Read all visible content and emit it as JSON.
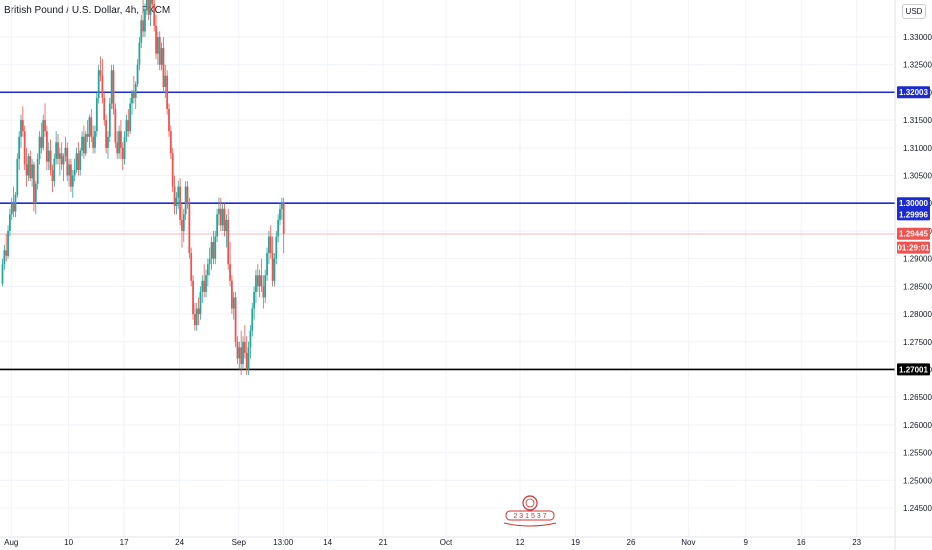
{
  "header": {
    "title": "British Pound / U.S. Dollar, 4h, FXCM",
    "currency_badge": "USD"
  },
  "colors": {
    "up": "#26a69a",
    "down": "#ef5350",
    "blue_line": "#1c2bd1",
    "black_line": "#000000",
    "grid": "#f0f3fa",
    "axis_text": "#131722",
    "current_price": "#ef5350",
    "current_line": "#f7b8b8"
  },
  "chart_data": {
    "type": "candlestick",
    "title": "British Pound / U.S. Dollar, 4h, FXCM",
    "ylim": [
      1.24,
      1.34
    ],
    "y_ticks": [
      1.33,
      1.325,
      1.32,
      1.315,
      1.31,
      1.305,
      1.3,
      1.295,
      1.29,
      1.285,
      1.28,
      1.275,
      1.27,
      1.265,
      1.26,
      1.255,
      1.25,
      1.245
    ],
    "y_tick_labels": [
      "1.33000",
      "1.32500",
      "1.32000",
      "1.31500",
      "1.31000",
      "1.30500",
      "1.30000",
      "1.29500",
      "1.29000",
      "1.28500",
      "1.28000",
      "1.27500",
      "1.27000",
      "1.26500",
      "1.26000",
      "1.25500",
      "1.25000",
      "1.24500"
    ],
    "x_tick_labels": [
      {
        "label": "Aug",
        "bar": 5
      },
      {
        "label": "10",
        "bar": 36
      },
      {
        "label": "17",
        "bar": 66
      },
      {
        "label": "24",
        "bar": 96
      },
      {
        "label": "Sep",
        "bar": 128
      },
      {
        "label": "13:00",
        "bar": 152
      },
      {
        "label": "14",
        "bar": 176
      },
      {
        "label": "21",
        "bar": 206
      },
      {
        "label": "Oct",
        "bar": 240
      },
      {
        "label": "12",
        "bar": 280
      },
      {
        "label": "19",
        "bar": 310
      },
      {
        "label": "26",
        "bar": 340
      },
      {
        "label": "Nov",
        "bar": 371
      },
      {
        "label": "9",
        "bar": 402
      },
      {
        "label": "16",
        "bar": 432
      },
      {
        "label": "23",
        "bar": 462
      }
    ],
    "horizontal_lines": [
      {
        "price": 1.32003,
        "label": "1.32003",
        "color": "#1c2bd1"
      },
      {
        "price": 1.3,
        "label": "1.30000",
        "color": "#1c2bd1"
      },
      {
        "price": 1.27001,
        "label": "1.27001",
        "color": "#000000"
      }
    ],
    "price_tags": [
      {
        "label": "1.29996",
        "color": "#1c2bd1",
        "slot": 1.298
      },
      {
        "label": "1.29445",
        "color": "#ef5350",
        "slot": 1.2945
      },
      {
        "label": "01:29:01",
        "color": "#ef5350",
        "slot": 1.292
      }
    ],
    "current_price": 1.29445,
    "watermark_text": "2 3 1 5 3 7",
    "ohlc": [
      [
        1.2855,
        1.29,
        1.285,
        1.289
      ],
      [
        1.289,
        1.2925,
        1.288,
        1.2915
      ],
      [
        1.2915,
        1.2945,
        1.2895,
        1.2905
      ],
      [
        1.2905,
        1.296,
        1.29,
        1.295
      ],
      [
        1.295,
        1.299,
        1.294,
        1.298
      ],
      [
        1.298,
        1.301,
        1.297,
        1.3
      ],
      [
        1.3,
        1.303,
        1.2975,
        1.2985
      ],
      [
        1.2985,
        1.302,
        1.2975,
        1.3015
      ],
      [
        1.3015,
        1.309,
        1.301,
        1.308
      ],
      [
        1.308,
        1.313,
        1.306,
        1.312
      ],
      [
        1.312,
        1.316,
        1.31,
        1.315
      ],
      [
        1.315,
        1.3175,
        1.312,
        1.313
      ],
      [
        1.313,
        1.314,
        1.306,
        1.307
      ],
      [
        1.307,
        1.31,
        1.303,
        1.305
      ],
      [
        1.305,
        1.309,
        1.304,
        1.3085
      ],
      [
        1.3085,
        1.3095,
        1.304,
        1.3045
      ],
      [
        1.3045,
        1.308,
        1.303,
        1.307
      ],
      [
        1.307,
        1.3075,
        1.2985,
        1.3
      ],
      [
        1.3,
        1.304,
        1.298,
        1.3035
      ],
      [
        1.3035,
        1.309,
        1.3025,
        1.308
      ],
      [
        1.308,
        1.313,
        1.307,
        1.312
      ],
      [
        1.312,
        1.3145,
        1.309,
        1.31
      ],
      [
        1.31,
        1.316,
        1.3095,
        1.315
      ],
      [
        1.315,
        1.318,
        1.312,
        1.313
      ],
      [
        1.313,
        1.314,
        1.306,
        1.3075
      ],
      [
        1.3075,
        1.311,
        1.306,
        1.3095
      ],
      [
        1.3095,
        1.3115,
        1.305,
        1.306
      ],
      [
        1.306,
        1.307,
        1.302,
        1.304
      ],
      [
        1.304,
        1.309,
        1.303,
        1.308
      ],
      [
        1.308,
        1.313,
        1.307,
        1.311
      ],
      [
        1.311,
        1.3125,
        1.307,
        1.308
      ],
      [
        1.308,
        1.31,
        1.305,
        1.309
      ],
      [
        1.309,
        1.311,
        1.306,
        1.307
      ],
      [
        1.307,
        1.309,
        1.304,
        1.3085
      ],
      [
        1.3085,
        1.312,
        1.3075,
        1.31
      ],
      [
        1.31,
        1.311,
        1.304,
        1.305
      ],
      [
        1.305,
        1.308,
        1.303,
        1.307
      ],
      [
        1.307,
        1.308,
        1.302,
        1.303
      ],
      [
        1.303,
        1.306,
        1.301,
        1.305
      ],
      [
        1.305,
        1.308,
        1.304,
        1.306
      ],
      [
        1.306,
        1.31,
        1.3055,
        1.309
      ],
      [
        1.309,
        1.311,
        1.305,
        1.306
      ],
      [
        1.306,
        1.31,
        1.305,
        1.3095
      ],
      [
        1.3095,
        1.313,
        1.3085,
        1.312
      ],
      [
        1.312,
        1.314,
        1.308,
        1.309
      ],
      [
        1.309,
        1.313,
        1.3085,
        1.3125
      ],
      [
        1.3125,
        1.315,
        1.311,
        1.312
      ],
      [
        1.312,
        1.316,
        1.31,
        1.3155
      ],
      [
        1.3155,
        1.317,
        1.311,
        1.312
      ],
      [
        1.312,
        1.314,
        1.309,
        1.31
      ],
      [
        1.31,
        1.314,
        1.309,
        1.313
      ],
      [
        1.313,
        1.32,
        1.312,
        1.319
      ],
      [
        1.319,
        1.325,
        1.318,
        1.324
      ],
      [
        1.324,
        1.3265,
        1.322,
        1.323
      ],
      [
        1.323,
        1.326,
        1.318,
        1.319
      ],
      [
        1.319,
        1.32,
        1.314,
        1.315
      ],
      [
        1.315,
        1.316,
        1.309,
        1.31
      ],
      [
        1.31,
        1.313,
        1.308,
        1.312
      ],
      [
        1.312,
        1.319,
        1.311,
        1.318
      ],
      [
        1.318,
        1.325,
        1.317,
        1.324
      ],
      [
        1.324,
        1.325,
        1.316,
        1.317
      ],
      [
        1.317,
        1.318,
        1.31,
        1.311
      ],
      [
        1.311,
        1.313,
        1.308,
        1.309
      ],
      [
        1.309,
        1.314,
        1.308,
        1.313
      ],
      [
        1.313,
        1.315,
        1.308,
        1.31
      ],
      [
        1.31,
        1.311,
        1.306,
        1.308
      ],
      [
        1.308,
        1.313,
        1.307,
        1.312
      ],
      [
        1.312,
        1.316,
        1.311,
        1.315
      ],
      [
        1.315,
        1.317,
        1.312,
        1.313
      ],
      [
        1.313,
        1.319,
        1.3125,
        1.318
      ],
      [
        1.318,
        1.3205,
        1.316,
        1.32
      ],
      [
        1.32,
        1.323,
        1.318,
        1.319
      ],
      [
        1.319,
        1.322,
        1.317,
        1.3215
      ],
      [
        1.3215,
        1.326,
        1.321,
        1.325
      ],
      [
        1.325,
        1.33,
        1.324,
        1.329
      ],
      [
        1.329,
        1.334,
        1.328,
        1.333
      ],
      [
        1.333,
        1.337,
        1.33,
        1.331
      ],
      [
        1.331,
        1.336,
        1.33,
        1.335
      ],
      [
        1.335,
        1.34,
        1.334,
        1.338
      ],
      [
        1.338,
        1.339,
        1.333,
        1.334
      ],
      [
        1.334,
        1.338,
        1.332,
        1.337
      ],
      [
        1.337,
        1.34,
        1.335,
        1.336
      ],
      [
        1.336,
        1.338,
        1.331,
        1.332
      ],
      [
        1.332,
        1.334,
        1.326,
        1.327
      ],
      [
        1.327,
        1.331,
        1.325,
        1.33
      ],
      [
        1.33,
        1.331,
        1.324,
        1.325
      ],
      [
        1.325,
        1.329,
        1.324,
        1.328
      ],
      [
        1.328,
        1.33,
        1.32,
        1.321
      ],
      [
        1.321,
        1.325,
        1.319,
        1.323
      ],
      [
        1.323,
        1.324,
        1.316,
        1.317
      ],
      [
        1.317,
        1.318,
        1.312,
        1.313
      ],
      [
        1.313,
        1.314,
        1.308,
        1.309
      ],
      [
        1.309,
        1.31,
        1.302,
        1.303
      ],
      [
        1.303,
        1.305,
        1.298,
        1.2995
      ],
      [
        1.2995,
        1.302,
        1.298,
        1.301
      ],
      [
        1.301,
        1.304,
        1.299,
        1.303
      ],
      [
        1.303,
        1.3045,
        1.296,
        1.297
      ],
      [
        1.297,
        1.3,
        1.292,
        1.295
      ],
      [
        1.295,
        1.299,
        1.293,
        1.298
      ],
      [
        1.298,
        1.304,
        1.297,
        1.303
      ],
      [
        1.303,
        1.304,
        1.299,
        1.3
      ],
      [
        1.3,
        1.301,
        1.29,
        1.291
      ],
      [
        1.291,
        1.292,
        1.285,
        1.286
      ],
      [
        1.286,
        1.287,
        1.279,
        1.28
      ],
      [
        1.28,
        1.282,
        1.277,
        1.278
      ],
      [
        1.278,
        1.282,
        1.277,
        1.281
      ],
      [
        1.281,
        1.283,
        1.278,
        1.28
      ],
      [
        1.28,
        1.285,
        1.279,
        1.284
      ],
      [
        1.284,
        1.287,
        1.282,
        1.286
      ],
      [
        1.286,
        1.289,
        1.283,
        1.284
      ],
      [
        1.284,
        1.288,
        1.283,
        1.287
      ],
      [
        1.287,
        1.29,
        1.285,
        1.289
      ],
      [
        1.289,
        1.292,
        1.287,
        1.29
      ],
      [
        1.29,
        1.294,
        1.288,
        1.293
      ],
      [
        1.293,
        1.295,
        1.289,
        1.29
      ],
      [
        1.29,
        1.295,
        1.289,
        1.294
      ],
      [
        1.294,
        1.299,
        1.293,
        1.298
      ],
      [
        1.298,
        1.301,
        1.296,
        1.299
      ],
      [
        1.299,
        1.301,
        1.295,
        1.296
      ],
      [
        1.296,
        1.3,
        1.295,
        1.299
      ],
      [
        1.299,
        1.3,
        1.294,
        1.295
      ],
      [
        1.295,
        1.298,
        1.292,
        1.297
      ],
      [
        1.297,
        1.299,
        1.288,
        1.289
      ],
      [
        1.289,
        1.293,
        1.285,
        1.286
      ],
      [
        1.286,
        1.287,
        1.28,
        1.281
      ],
      [
        1.281,
        1.284,
        1.279,
        1.283
      ],
      [
        1.283,
        1.284,
        1.274,
        1.275
      ],
      [
        1.275,
        1.276,
        1.271,
        1.272
      ],
      [
        1.272,
        1.275,
        1.27,
        1.274
      ],
      [
        1.274,
        1.277,
        1.269,
        1.271
      ],
      [
        1.271,
        1.276,
        1.27,
        1.275
      ],
      [
        1.275,
        1.278,
        1.272,
        1.273
      ],
      [
        1.273,
        1.276,
        1.269,
        1.27
      ],
      [
        1.27,
        1.275,
        1.269,
        1.274
      ],
      [
        1.274,
        1.278,
        1.272,
        1.277
      ],
      [
        1.277,
        1.282,
        1.276,
        1.281
      ],
      [
        1.281,
        1.285,
        1.279,
        1.284
      ],
      [
        1.284,
        1.288,
        1.282,
        1.287
      ],
      [
        1.287,
        1.289,
        1.284,
        1.285
      ],
      [
        1.285,
        1.288,
        1.283,
        1.287
      ],
      [
        1.287,
        1.29,
        1.284,
        1.285
      ],
      [
        1.285,
        1.287,
        1.281,
        1.283
      ],
      [
        1.283,
        1.288,
        1.282,
        1.287
      ],
      [
        1.287,
        1.292,
        1.286,
        1.291
      ],
      [
        1.291,
        1.295,
        1.289,
        1.294
      ],
      [
        1.294,
        1.296,
        1.29,
        1.291
      ],
      [
        1.291,
        1.294,
        1.285,
        1.286
      ],
      [
        1.286,
        1.291,
        1.285,
        1.29
      ],
      [
        1.29,
        1.295,
        1.289,
        1.294
      ],
      [
        1.294,
        1.298,
        1.293,
        1.297
      ],
      [
        1.297,
        1.3,
        1.296,
        1.299
      ],
      [
        1.299,
        1.301,
        1.297,
        1.3
      ],
      [
        1.3,
        1.301,
        1.291,
        1.2945
      ]
    ]
  }
}
